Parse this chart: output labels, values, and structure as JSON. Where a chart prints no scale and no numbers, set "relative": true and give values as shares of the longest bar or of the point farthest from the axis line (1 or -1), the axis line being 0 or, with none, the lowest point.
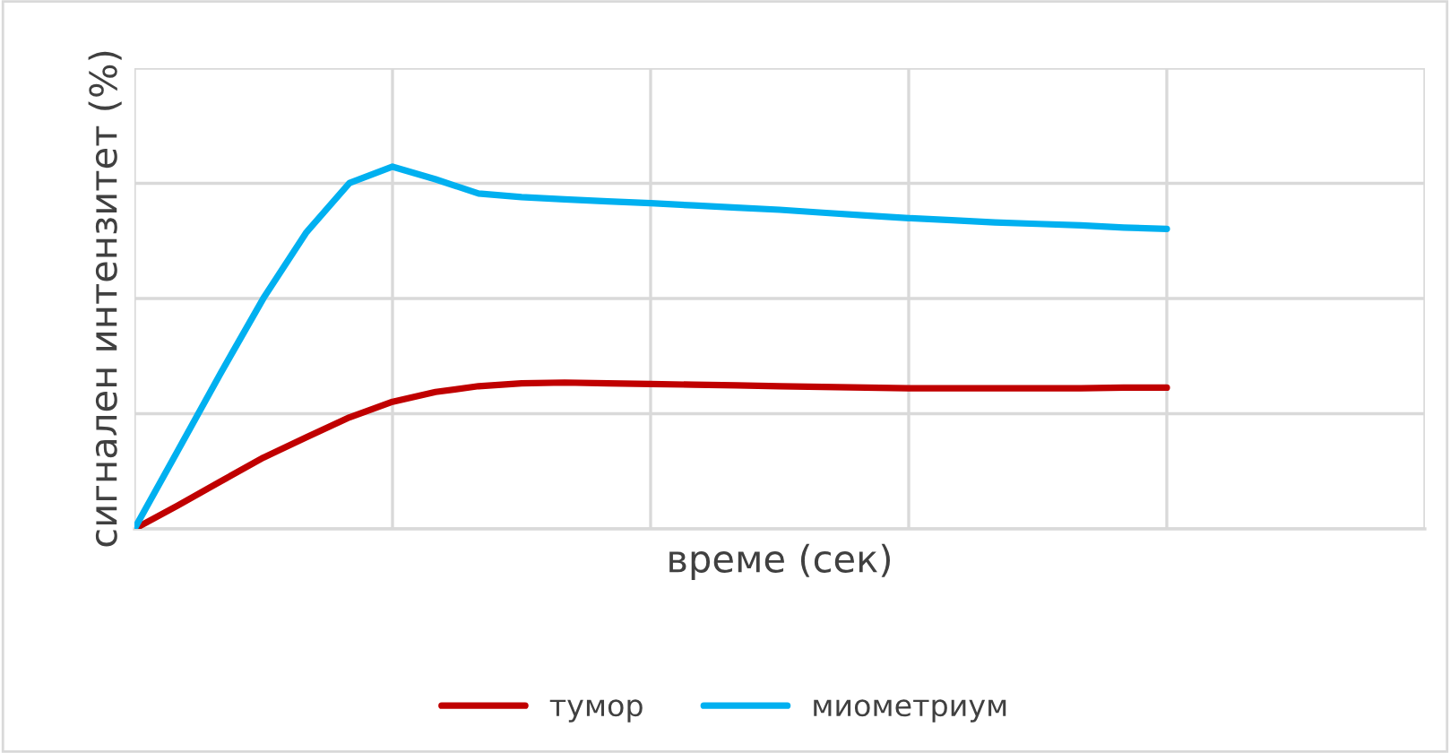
{
  "chart_data": {
    "type": "line",
    "relative": true,
    "xlabel": "време (сек)",
    "ylabel": "сигнален интензитет (%)",
    "categories": [
      null,
      null,
      null,
      null,
      null,
      null,
      null,
      null,
      null,
      null,
      null,
      null,
      null,
      null,
      null,
      null,
      null,
      null,
      null,
      null,
      null,
      null,
      null,
      null,
      null,
      null,
      null,
      null,
      null,
      null,
      null
    ],
    "series": [
      {
        "name": "тумор",
        "color": "#c00000",
        "values": [
          0,
          0.064,
          0.131,
          0.197,
          0.253,
          0.308,
          0.351,
          0.378,
          0.394,
          0.402,
          0.404,
          0.402,
          0.4,
          0.398,
          0.396,
          0.394,
          0.392,
          0.39,
          0.388,
          0.388,
          0.388,
          0.388,
          0.388,
          0.39,
          0.39,
          null,
          null,
          null,
          null,
          null,
          null
        ]
      },
      {
        "name": "миометриум",
        "color": "#00b0f0",
        "values": [
          0,
          0.214,
          0.429,
          0.637,
          0.819,
          0.955,
          1.0,
          0.965,
          0.926,
          0.916,
          0.91,
          0.904,
          0.899,
          0.893,
          0.887,
          0.881,
          0.873,
          0.865,
          0.858,
          0.852,
          0.846,
          0.842,
          0.838,
          0.832,
          0.828,
          null,
          null,
          null,
          null,
          null,
          null
        ]
      }
    ],
    "grid": true,
    "legend": "bottom",
    "line_style": "solid",
    "marker": "none"
  }
}
